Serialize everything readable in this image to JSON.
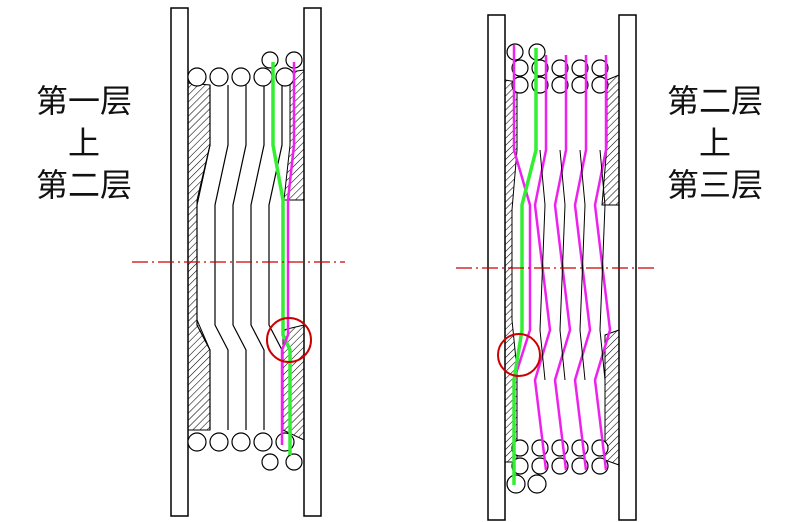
{
  "left_caption": {
    "line1": "第一层",
    "line2": "上",
    "line3": "第二层"
  },
  "right_caption": {
    "line1": "第二层",
    "line2": "上",
    "line3": "第三层"
  },
  "colors": {
    "outline": "#000000",
    "layer_green": "#33ee33",
    "layer_magenta": "#ee22ee",
    "centerline": "#cc0000",
    "highlight_circle": "#cc0000",
    "background": "#ffffff"
  },
  "icons": [
    "hatch-pattern",
    "wire-ball",
    "highlight-circle"
  ]
}
